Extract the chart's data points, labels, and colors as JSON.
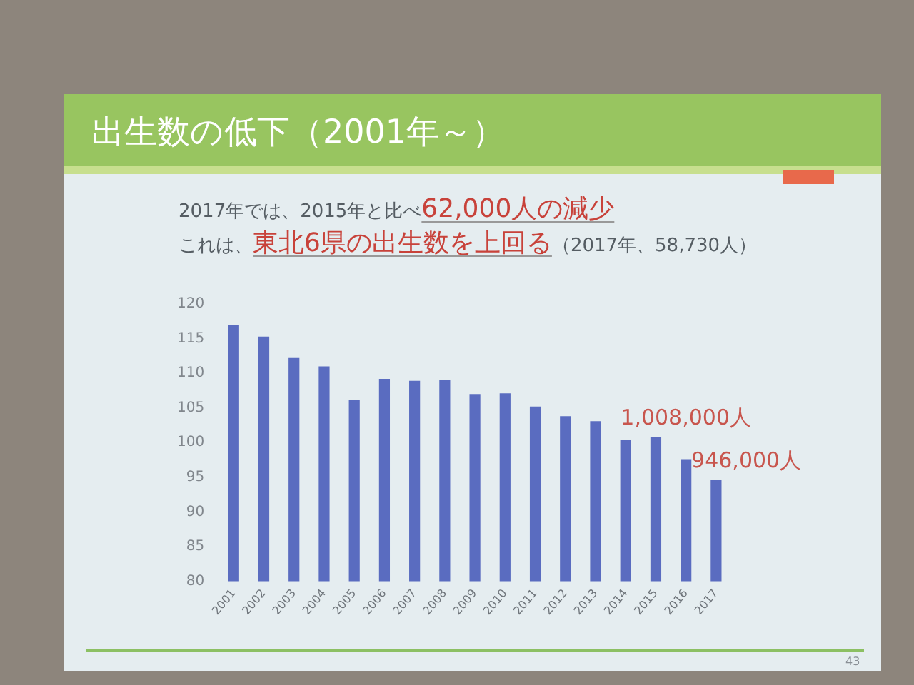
{
  "chart_data": {
    "type": "bar",
    "title": "出生数の低下（2001年～）",
    "categories": [
      "2001",
      "2002",
      "2003",
      "2004",
      "2005",
      "2006",
      "2007",
      "2008",
      "2009",
      "2010",
      "2011",
      "2012",
      "2013",
      "2014",
      "2015",
      "2016",
      "2017"
    ],
    "values": [
      117.0,
      115.3,
      112.2,
      111.0,
      106.2,
      109.2,
      108.9,
      109.0,
      107.0,
      107.1,
      105.2,
      103.8,
      103.1,
      100.4,
      100.8,
      97.6,
      94.6
    ],
    "color": "#5a6cc0",
    "ylim": [
      80,
      120
    ],
    "yticks": [
      80,
      85,
      90,
      95,
      100,
      105,
      110,
      115,
      120
    ],
    "annotations": [
      "2017年では、2015年と比べ",
      "62,000人の減少",
      "これは、",
      "東北6県の出生数を上回る",
      "（2017年、58,730人）",
      "43",
      {
        "text": "1,008,000人",
        "x": "2015",
        "y": 100.8
      },
      {
        "text": "946,000人",
        "x": "2017",
        "y": 94.6
      }
    ]
  }
}
